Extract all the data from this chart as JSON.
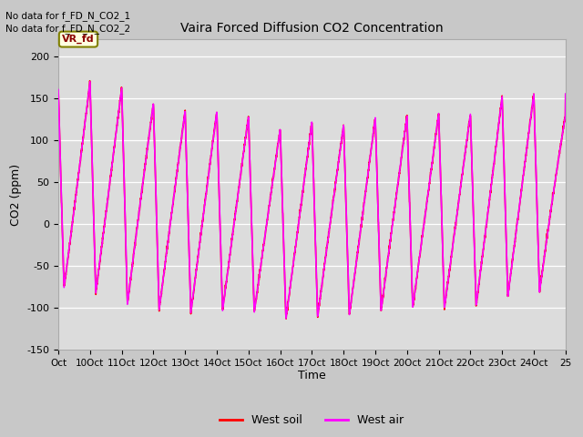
{
  "title": "Vaira Forced Diffusion CO2 Concentration",
  "xlabel": "Time",
  "ylabel": "CO2 (ppm)",
  "ylim": [
    -150,
    220
  ],
  "yticks": [
    -150,
    -100,
    -50,
    0,
    50,
    100,
    150,
    200
  ],
  "fig_bg_color": "#c8c8c8",
  "plot_bg_color": "#dcdcdc",
  "line_color_soil": "#ff0000",
  "line_color_air": "#ff00ff",
  "no_data_text1": "No data for f_FD_N_CO2_1",
  "no_data_text2": "No data for f_FD_N_CO2_2",
  "legend_label_soil": "West soil",
  "legend_label_air": "West air",
  "vr_fd_label": "VR_fd",
  "x_tick_labels": [
    "Oct",
    "10Oct",
    "11Oct",
    "12Oct",
    "13Oct",
    "14Oct",
    "15Oct",
    "16Oct",
    "17Oct",
    "18Oct",
    "19Oct",
    "20Oct",
    "21Oct",
    "22Oct",
    "23Oct",
    "24Oct",
    "25"
  ],
  "peak_envelope": [
    160,
    170,
    163,
    144,
    135,
    134,
    128,
    113,
    122,
    118,
    127,
    129,
    132,
    131,
    152,
    155,
    130
  ],
  "trough_envelope": [
    -75,
    -80,
    -95,
    -102,
    -107,
    -104,
    -104,
    -114,
    -111,
    -110,
    -105,
    -100,
    -101,
    -100,
    -88,
    -82,
    -80
  ]
}
